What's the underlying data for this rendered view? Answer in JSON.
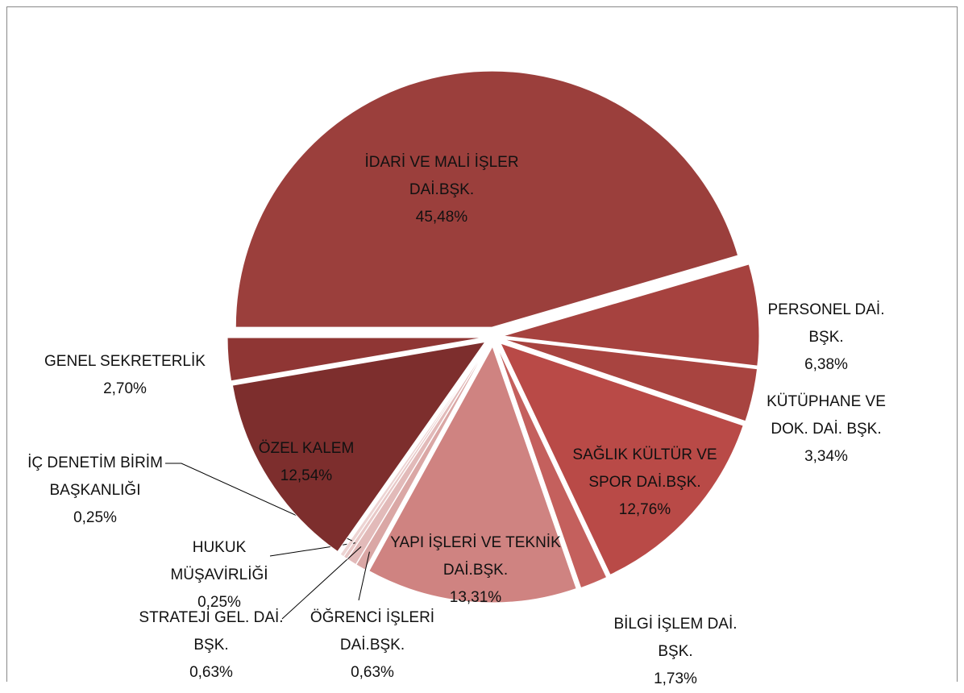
{
  "chart_data": {
    "type": "pie",
    "categories": [
      "İDARİ VE MALİ İŞLER DAİ.BŞK.",
      "PERSONEL DAİ. BŞK.",
      "KÜTÜPHANE VE DOK. DAİ. BŞK.",
      "SAĞLIK KÜLTÜR VE SPOR DAİ.BŞK.",
      "BİLGİ İŞLEM DAİ. BŞK.",
      "YAPI İŞLERİ VE TEKNİK DAİ.BŞK.",
      "ÖĞRENCİ İŞLERİ DAİ.BŞK.",
      "STRATEJİ GEL. DAİ. BŞK.",
      "HUKUK MÜŞAVİRLİĞİ",
      "İÇ DENETİM BİRİM BAŞKANLIĞI",
      "ÖZEL KALEM",
      "GENEL SEKRETERLİK"
    ],
    "values": [
      45.48,
      6.38,
      3.34,
      12.76,
      1.73,
      13.31,
      0.63,
      0.63,
      0.25,
      0.25,
      12.54,
      2.7
    ],
    "value_labels": [
      "45,48%",
      "6,38%",
      "3,34%",
      "12,76%",
      "1,73%",
      "13,31%",
      "0,63%",
      "0,63%",
      "0,25%",
      "0,25%",
      "12,54%",
      "2,70%"
    ],
    "colors": [
      "#9b3f3c",
      "#a6423f",
      "#a84440",
      "#b94a47",
      "#c4605d",
      "#cf8381",
      "#daa7a5",
      "#e2bab9",
      "#e8c8c7",
      "#edd4d3",
      "#7d2e2d",
      "#8f3634"
    ]
  }
}
